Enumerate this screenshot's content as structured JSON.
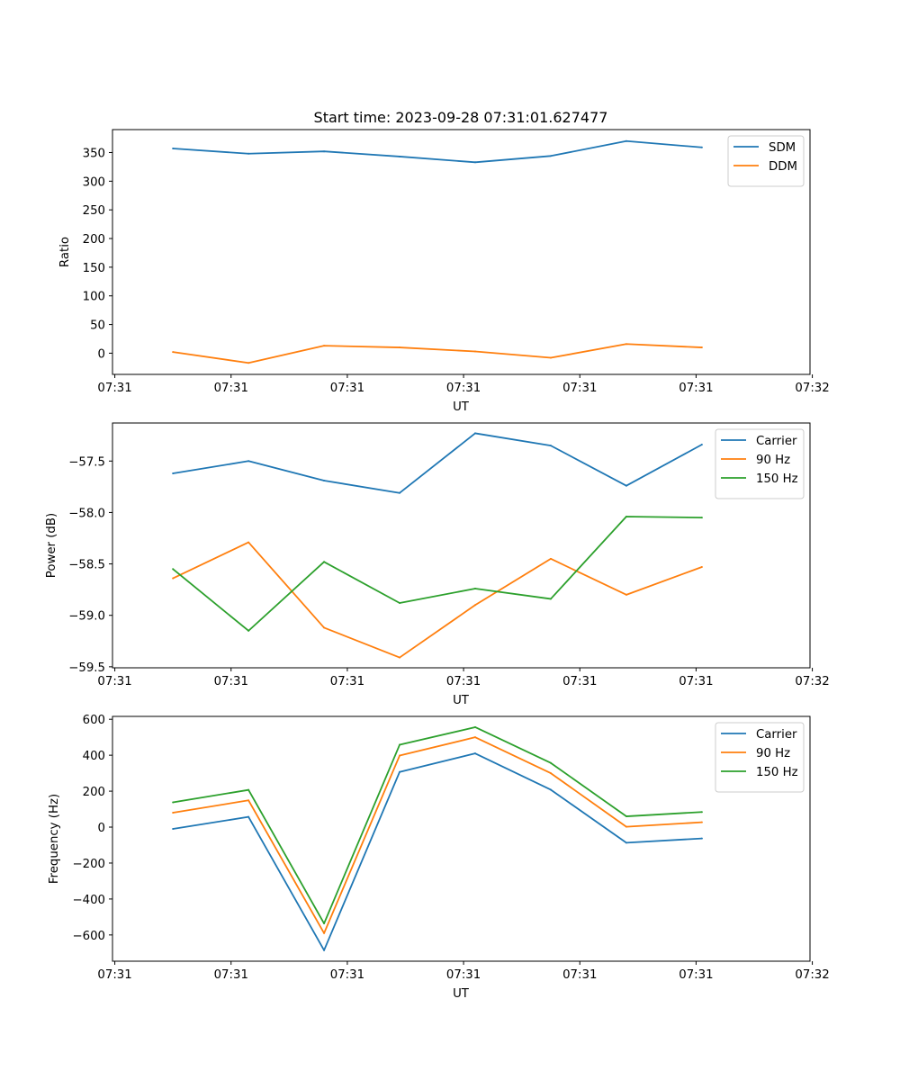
{
  "title": "Start time: 2023-09-28 07:31:01.627477",
  "colors": {
    "blue": "#1f77b4",
    "orange": "#ff7f0e",
    "green": "#2ca02c"
  },
  "chart_data": [
    {
      "type": "line",
      "title": "Start time: 2023-09-28 07:31:01.627477",
      "xlabel": "UT",
      "ylabel": "Ratio",
      "x": [
        0.5,
        1.15,
        1.8,
        2.45,
        3.1,
        3.75,
        4.4,
        5.05
      ],
      "xlim": [
        -0.02,
        5.98
      ],
      "x_ticks": [
        0,
        1,
        2,
        3,
        4,
        5,
        6
      ],
      "x_tick_labels": [
        "07:31",
        "07:31",
        "07:31",
        "07:31",
        "07:31",
        "07:31",
        "07:32"
      ],
      "ylim": [
        -37,
        390
      ],
      "y_ticks": [
        0,
        50,
        100,
        150,
        200,
        250,
        300,
        350
      ],
      "y_tick_labels": [
        "0",
        "50",
        "100",
        "150",
        "200",
        "250",
        "300",
        "350"
      ],
      "legend_position": "top-right",
      "series": [
        {
          "name": "SDM",
          "color": "#1f77b4",
          "values": [
            357,
            348,
            352,
            343,
            333,
            344,
            370,
            359
          ]
        },
        {
          "name": "DDM",
          "color": "#ff7f0e",
          "values": [
            2,
            -17,
            13,
            10,
            3,
            -8,
            16,
            10
          ]
        }
      ]
    },
    {
      "type": "line",
      "title": "",
      "xlabel": "UT",
      "ylabel": "Power (dB)",
      "x": [
        0.5,
        1.15,
        1.8,
        2.45,
        3.1,
        3.75,
        4.4,
        5.05
      ],
      "xlim": [
        -0.02,
        5.98
      ],
      "x_ticks": [
        0,
        1,
        2,
        3,
        4,
        5,
        6
      ],
      "x_tick_labels": [
        "07:31",
        "07:31",
        "07:31",
        "07:31",
        "07:31",
        "07:31",
        "07:32"
      ],
      "ylim": [
        -59.51,
        -57.13
      ],
      "y_ticks": [
        -59.5,
        -59.0,
        -58.5,
        -58.0,
        -57.5
      ],
      "y_tick_labels": [
        "−59.5",
        "−59.0",
        "−58.5",
        "−58.0",
        "−57.5"
      ],
      "legend_position": "top-right",
      "series": [
        {
          "name": "Carrier",
          "color": "#1f77b4",
          "values": [
            -57.62,
            -57.5,
            -57.69,
            -57.81,
            -57.23,
            -57.35,
            -57.74,
            -57.34
          ]
        },
        {
          "name": "90 Hz",
          "color": "#ff7f0e",
          "values": [
            -58.64,
            -58.29,
            -59.12,
            -59.41,
            -58.9,
            -58.45,
            -58.8,
            -58.53
          ]
        },
        {
          "name": "150 Hz",
          "color": "#2ca02c",
          "values": [
            -58.55,
            -59.15,
            -58.48,
            -58.88,
            -58.74,
            -58.84,
            -58.04,
            -58.05
          ]
        }
      ]
    },
    {
      "type": "line",
      "title": "",
      "xlabel": "UT",
      "ylabel": "Frequency (Hz)",
      "x": [
        0.5,
        1.15,
        1.8,
        2.45,
        3.1,
        3.75,
        4.4,
        5.05
      ],
      "xlim": [
        -0.02,
        5.98
      ],
      "x_ticks": [
        0,
        1,
        2,
        3,
        4,
        5,
        6
      ],
      "x_tick_labels": [
        "07:31",
        "07:31",
        "07:31",
        "07:31",
        "07:31",
        "07:31",
        "07:32"
      ],
      "ylim": [
        -746,
        616
      ],
      "y_ticks": [
        -600,
        -400,
        -200,
        0,
        200,
        400,
        600
      ],
      "y_tick_labels": [
        "−600",
        "−400",
        "−200",
        "0",
        "200",
        "400",
        "600"
      ],
      "legend_position": "top-right",
      "series": [
        {
          "name": "Carrier",
          "color": "#1f77b4",
          "values": [
            -10,
            57,
            -685,
            307,
            410,
            208,
            -87,
            -63
          ]
        },
        {
          "name": "90 Hz",
          "color": "#ff7f0e",
          "values": [
            80,
            149,
            -590,
            398,
            500,
            300,
            2,
            27
          ]
        },
        {
          "name": "150 Hz",
          "color": "#2ca02c",
          "values": [
            138,
            207,
            -536,
            458,
            556,
            357,
            60,
            84
          ]
        }
      ]
    }
  ]
}
